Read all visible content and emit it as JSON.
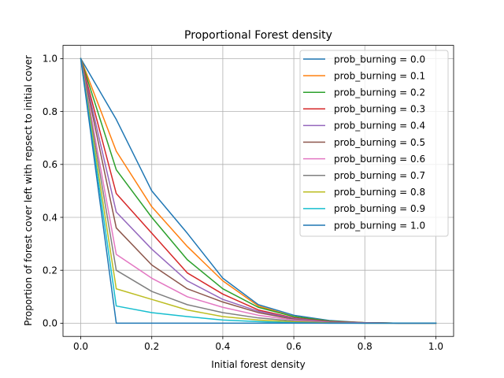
{
  "chart_data": {
    "type": "line",
    "title": "Proportional Forest density",
    "xlabel": "Initial forest density",
    "ylabel": "Proportion of forest cover left with repsect to initial cover",
    "x": [
      0.0,
      0.1,
      0.2,
      0.3,
      0.4,
      0.5,
      0.6,
      0.7,
      0.8,
      0.9,
      1.0
    ],
    "xlim": [
      -0.05,
      1.05
    ],
    "ylim": [
      -0.05,
      1.05
    ],
    "xticks": [
      0.0,
      0.2,
      0.4,
      0.6,
      0.8,
      1.0
    ],
    "yticks": [
      0.0,
      0.2,
      0.4,
      0.6,
      0.8,
      1.0
    ],
    "xtick_labels": [
      "0.0",
      "0.2",
      "0.4",
      "0.6",
      "0.8",
      "1.0"
    ],
    "ytick_labels": [
      "0.0",
      "0.2",
      "0.4",
      "0.6",
      "0.8",
      "1.0"
    ],
    "grid": true,
    "legend_position": "top-right",
    "series": [
      {
        "name": "prob_burning  = 0.0",
        "color": "#1f77b4",
        "values": [
          1.0,
          0.77,
          0.5,
          0.34,
          0.17,
          0.07,
          0.03,
          0.01,
          0.002,
          0.0,
          0.0
        ]
      },
      {
        "name": "prob_burning  = 0.1",
        "color": "#ff7f0e",
        "values": [
          1.0,
          0.65,
          0.44,
          0.29,
          0.16,
          0.065,
          0.025,
          0.008,
          0.002,
          0.0,
          0.0
        ]
      },
      {
        "name": "prob_burning  = 0.2",
        "color": "#2ca02c",
        "values": [
          1.0,
          0.58,
          0.4,
          0.24,
          0.13,
          0.06,
          0.025,
          0.008,
          0.002,
          0.0,
          0.0
        ]
      },
      {
        "name": "prob_burning  = 0.3",
        "color": "#d62728",
        "values": [
          1.0,
          0.49,
          0.34,
          0.19,
          0.11,
          0.05,
          0.02,
          0.006,
          0.002,
          0.0,
          0.0
        ]
      },
      {
        "name": "prob_burning  = 0.4",
        "color": "#9467bd",
        "values": [
          1.0,
          0.42,
          0.28,
          0.16,
          0.09,
          0.045,
          0.018,
          0.005,
          0.001,
          0.0,
          0.0
        ]
      },
      {
        "name": "prob_burning  = 0.5",
        "color": "#8c564b",
        "values": [
          1.0,
          0.36,
          0.22,
          0.13,
          0.08,
          0.04,
          0.015,
          0.004,
          0.001,
          0.0,
          0.0
        ]
      },
      {
        "name": "prob_burning  = 0.6",
        "color": "#e377c2",
        "values": [
          1.0,
          0.26,
          0.17,
          0.1,
          0.06,
          0.03,
          0.012,
          0.003,
          0.001,
          0.0,
          0.0
        ]
      },
      {
        "name": "prob_burning  = 0.7",
        "color": "#7f7f7f",
        "values": [
          1.0,
          0.2,
          0.12,
          0.07,
          0.04,
          0.02,
          0.008,
          0.002,
          0.0,
          0.0,
          0.0
        ]
      },
      {
        "name": "prob_burning  = 0.8",
        "color": "#bcbd22",
        "values": [
          1.0,
          0.13,
          0.09,
          0.05,
          0.025,
          0.012,
          0.005,
          0.001,
          0.0,
          0.0,
          0.0
        ]
      },
      {
        "name": "prob_burning  = 0.9",
        "color": "#17becf",
        "values": [
          1.0,
          0.065,
          0.04,
          0.025,
          0.012,
          0.006,
          0.002,
          0.0,
          0.0,
          0.0,
          0.0
        ]
      },
      {
        "name": "prob_burning  = 1.0",
        "color": "#1f77b4",
        "values": [
          1.0,
          0.0,
          0.0,
          0.0,
          0.0,
          0.0,
          0.0,
          0.0,
          0.0,
          0.0,
          0.0
        ]
      }
    ]
  }
}
